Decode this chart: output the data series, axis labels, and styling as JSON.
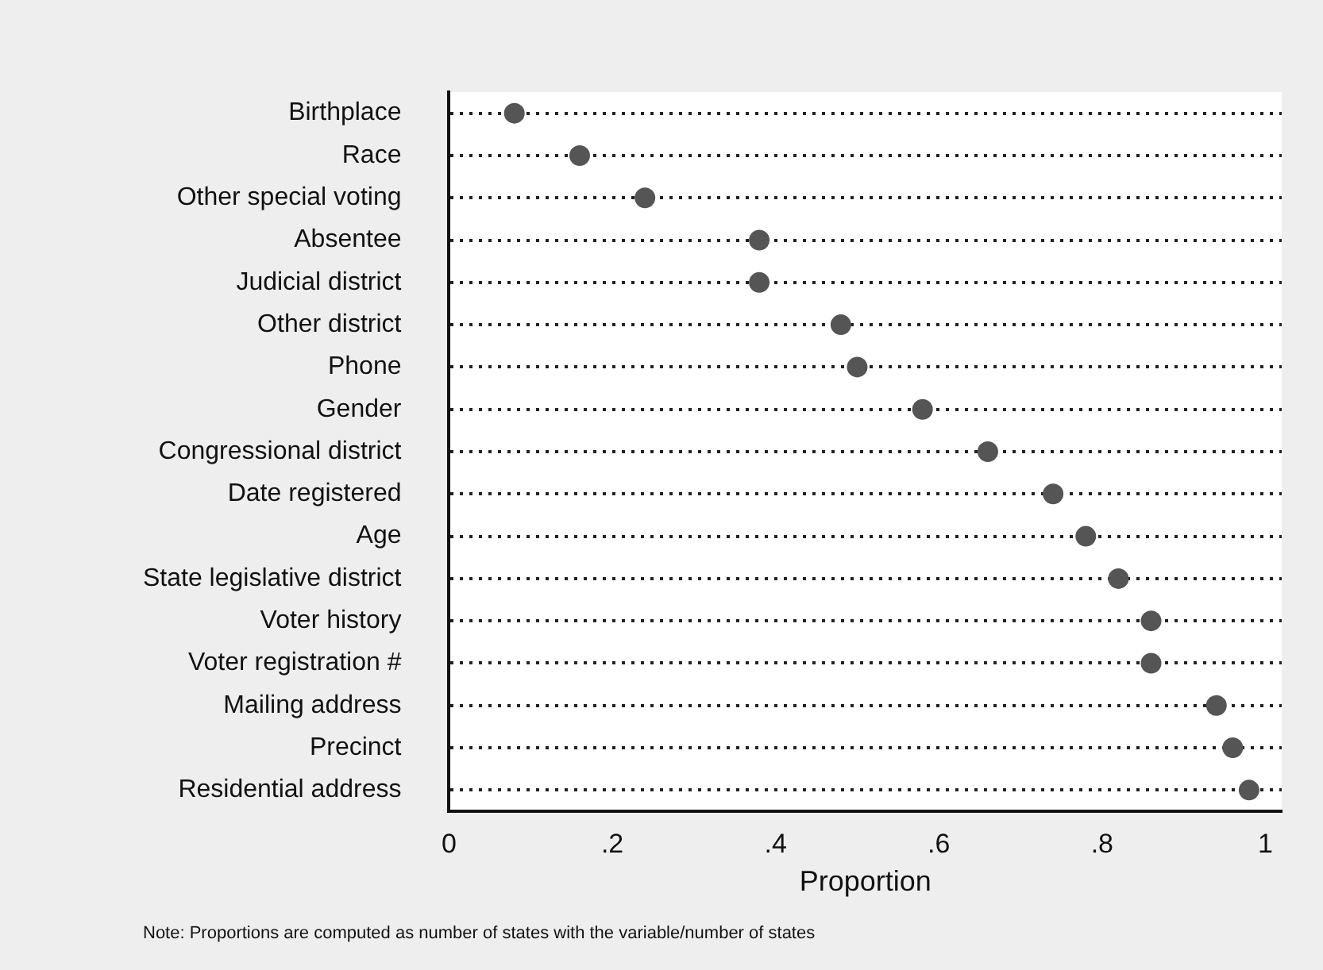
{
  "chart_data": {
    "type": "scatter",
    "orientation": "horizontal",
    "xlabel": "Proportion",
    "categories": [
      "Birthplace",
      "Race",
      "Other special voting",
      "Absentee",
      "Judicial district",
      "Other district",
      "Phone",
      "Gender",
      "Congressional district",
      "Date registered",
      "Age",
      "State legislative district",
      "Voter history",
      "Voter registration #",
      "Mailing address",
      "Precinct",
      "Residential address"
    ],
    "values": [
      0.08,
      0.16,
      0.24,
      0.38,
      0.38,
      0.48,
      0.5,
      0.58,
      0.66,
      0.74,
      0.78,
      0.82,
      0.86,
      0.86,
      0.94,
      0.96,
      0.98
    ],
    "color": "#555555",
    "marker": "circle",
    "grid": "y",
    "legend": false,
    "xlim": [
      0,
      1.02
    ],
    "xticks": [
      0,
      {
        "value": 0.2,
        "label": ".2"
      },
      {
        "value": 0.4,
        "label": ".4"
      },
      {
        "value": 0.6,
        "label": ".6"
      },
      {
        "value": 0.8,
        "label": ".8"
      },
      1
    ],
    "annotations": [
      "Note: Proportions are computed as number of states with the variable/number of states"
    ]
  }
}
